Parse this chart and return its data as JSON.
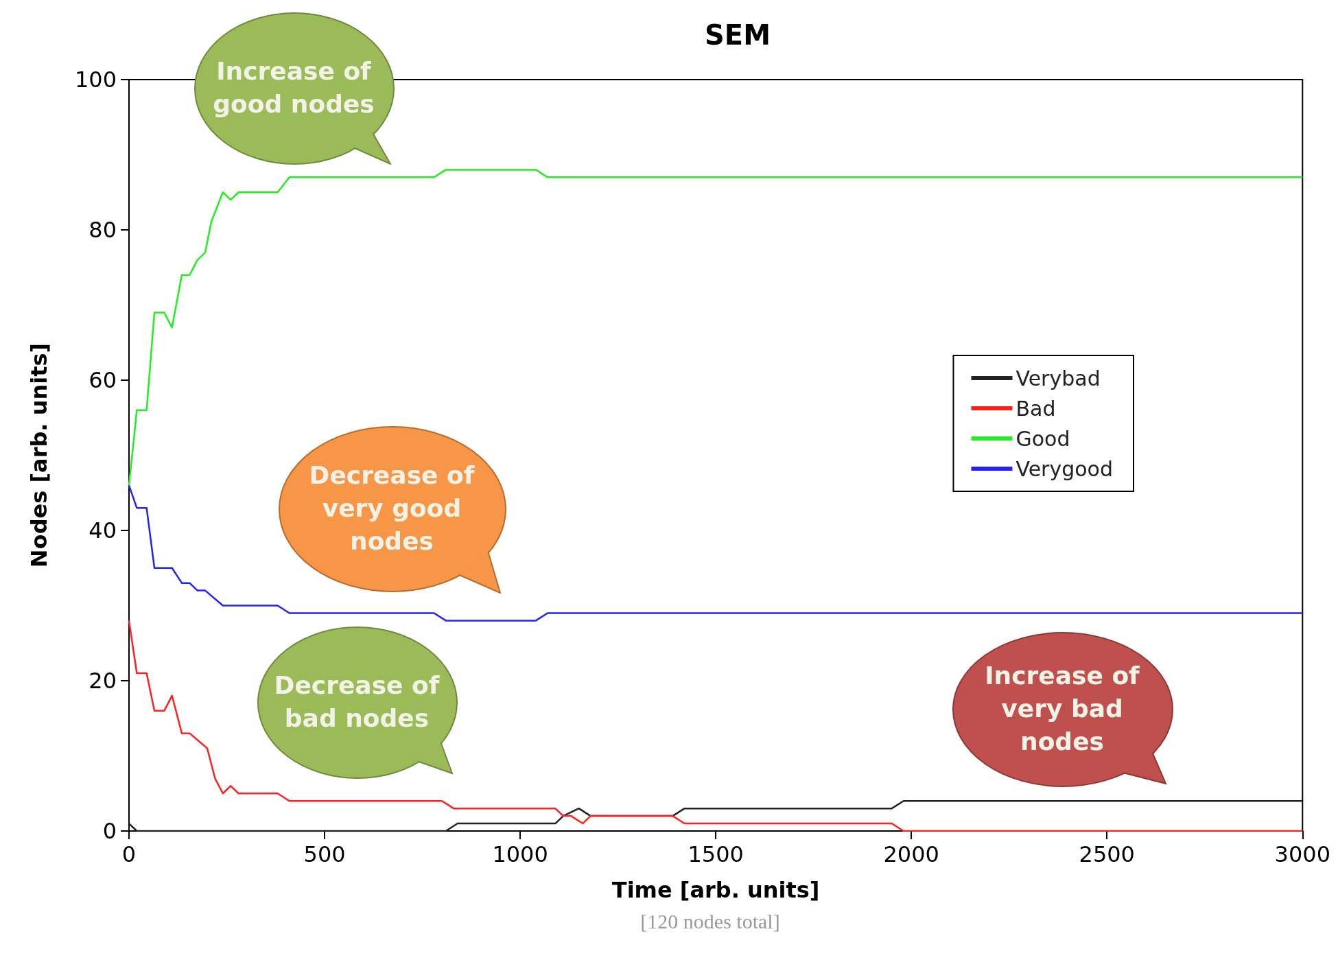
{
  "chart_data": {
    "type": "line",
    "title": "SEM",
    "xlabel": "Time [arb. units]",
    "ylabel": "Nodes [arb. units]",
    "xlim": [
      0,
      3000
    ],
    "xticks": [
      0,
      500,
      1000,
      1500,
      2000,
      2500,
      3000
    ],
    "ylim": [
      0,
      100
    ],
    "yticks": [
      0,
      20,
      40,
      60,
      80,
      100
    ],
    "grid": false,
    "legend": "right",
    "marker": "none",
    "line_style": "solid",
    "series": [
      {
        "name": "Verybad",
        "color": "#222222",
        "x": [
          0,
          20,
          810,
          840,
          1090,
          1110,
          1150,
          1180,
          1390,
          1420,
          1950,
          1980,
          3000
        ],
        "values": [
          1,
          0,
          0,
          1,
          1,
          2,
          3,
          2,
          2,
          3,
          3,
          4,
          4
        ]
      },
      {
        "name": "Bad",
        "color": "#ff2020",
        "x": [
          0,
          20,
          45,
          65,
          90,
          110,
          135,
          155,
          200,
          220,
          240,
          260,
          280,
          380,
          410,
          800,
          830,
          1090,
          1110,
          1130,
          1160,
          1180,
          1390,
          1420,
          1950,
          1980,
          3000
        ],
        "values": [
          28,
          21,
          21,
          16,
          16,
          18,
          13,
          13,
          11,
          7,
          5,
          6,
          5,
          5,
          4,
          4,
          3,
          3,
          2,
          2,
          1,
          2,
          2,
          1,
          1,
          0,
          0
        ]
      },
      {
        "name": "Good",
        "color": "#22ee22",
        "x": [
          0,
          20,
          45,
          65,
          90,
          110,
          135,
          155,
          175,
          195,
          210,
          240,
          260,
          280,
          380,
          410,
          780,
          810,
          1040,
          1070,
          3000
        ],
        "values": [
          46,
          56,
          56,
          69,
          69,
          67,
          74,
          74,
          76,
          77,
          81,
          85,
          84,
          85,
          85,
          87,
          87,
          88,
          88,
          87,
          87
        ]
      },
      {
        "name": "Verygood",
        "color": "#2222ff",
        "x": [
          0,
          20,
          45,
          65,
          110,
          135,
          155,
          175,
          195,
          240,
          380,
          410,
          780,
          810,
          1040,
          1070,
          3000
        ],
        "values": [
          46,
          43,
          43,
          35,
          35,
          33,
          33,
          32,
          32,
          30,
          30,
          29,
          29,
          28,
          28,
          29,
          29
        ]
      }
    ],
    "annotations": [
      "Increase of good nodes",
      "Decrease of very good nodes",
      "Decrease of bad nodes",
      "Increase of very bad nodes",
      "[120 nodes total]"
    ]
  }
}
